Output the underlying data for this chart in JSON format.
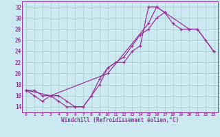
{
  "xlabel": "Windchill (Refroidissement éolien,°C)",
  "bg_color": "#cce8f0",
  "grid_color": "#aacccc",
  "line_color": "#993399",
  "spine_color": "#993399",
  "xlim": [
    -0.5,
    23.5
  ],
  "ylim": [
    13,
    33
  ],
  "xticks": [
    0,
    1,
    2,
    3,
    4,
    5,
    6,
    7,
    8,
    9,
    10,
    11,
    12,
    13,
    14,
    15,
    16,
    17,
    18,
    19,
    20,
    21,
    22,
    23
  ],
  "yticks": [
    14,
    16,
    18,
    20,
    22,
    24,
    26,
    28,
    30,
    32
  ],
  "line1_x": [
    0,
    1,
    2,
    3,
    4,
    5,
    6,
    7,
    8,
    9,
    10,
    11,
    12,
    13,
    14,
    15,
    16,
    17,
    18,
    19,
    20,
    21,
    22,
    23
  ],
  "line1_y": [
    17,
    17,
    16,
    16,
    16,
    15,
    14,
    14,
    16,
    19,
    21,
    22,
    23,
    25,
    27,
    28,
    30,
    31,
    29,
    28,
    28,
    28,
    26,
    24
  ],
  "line2_x": [
    0,
    1,
    2,
    3,
    4,
    5,
    6,
    7,
    8,
    9,
    10,
    11,
    12,
    13,
    14,
    15,
    16,
    17
  ],
  "line2_y": [
    17,
    16,
    15,
    16,
    15,
    14,
    14,
    14,
    16,
    18,
    21,
    22,
    22,
    24,
    25,
    32,
    32,
    31
  ],
  "line3_x": [
    0,
    3,
    10,
    15,
    16,
    17,
    20,
    21,
    23
  ],
  "line3_y": [
    17,
    16,
    20,
    29,
    32,
    31,
    28,
    28,
    24
  ]
}
